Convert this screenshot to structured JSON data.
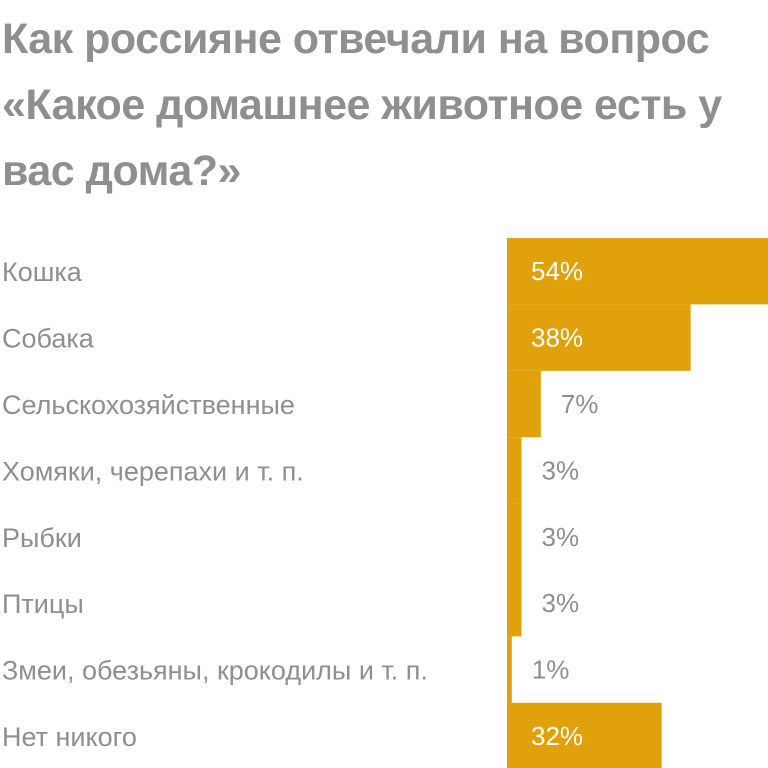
{
  "chart_data": {
    "type": "bar",
    "orientation": "horizontal",
    "title": "Как россияне отвечали на вопрос «Какое домашнее животное есть у вас дома?»",
    "categories": [
      "Кошка",
      "Собака",
      "Сельскохозяйственные",
      "Хомяки, черепахи и т. п.",
      "Рыбки",
      "Птицы",
      "Змеи, обезьяны, крокодилы и т. п.",
      "Нет никого"
    ],
    "values": [
      54,
      38,
      7,
      3,
      3,
      3,
      1,
      32
    ],
    "value_labels": [
      "54%",
      "38%",
      "7%",
      "3%",
      "3%",
      "3%",
      "1%",
      "32%"
    ],
    "unit": "%",
    "xlim": [
      0,
      54
    ],
    "grid": false,
    "legend": "none",
    "colors": {
      "bar": "#e0a10b",
      "label_inside": "#ffffff",
      "label_outside": "#8f8f8f",
      "text": "#8f8f8f"
    }
  }
}
